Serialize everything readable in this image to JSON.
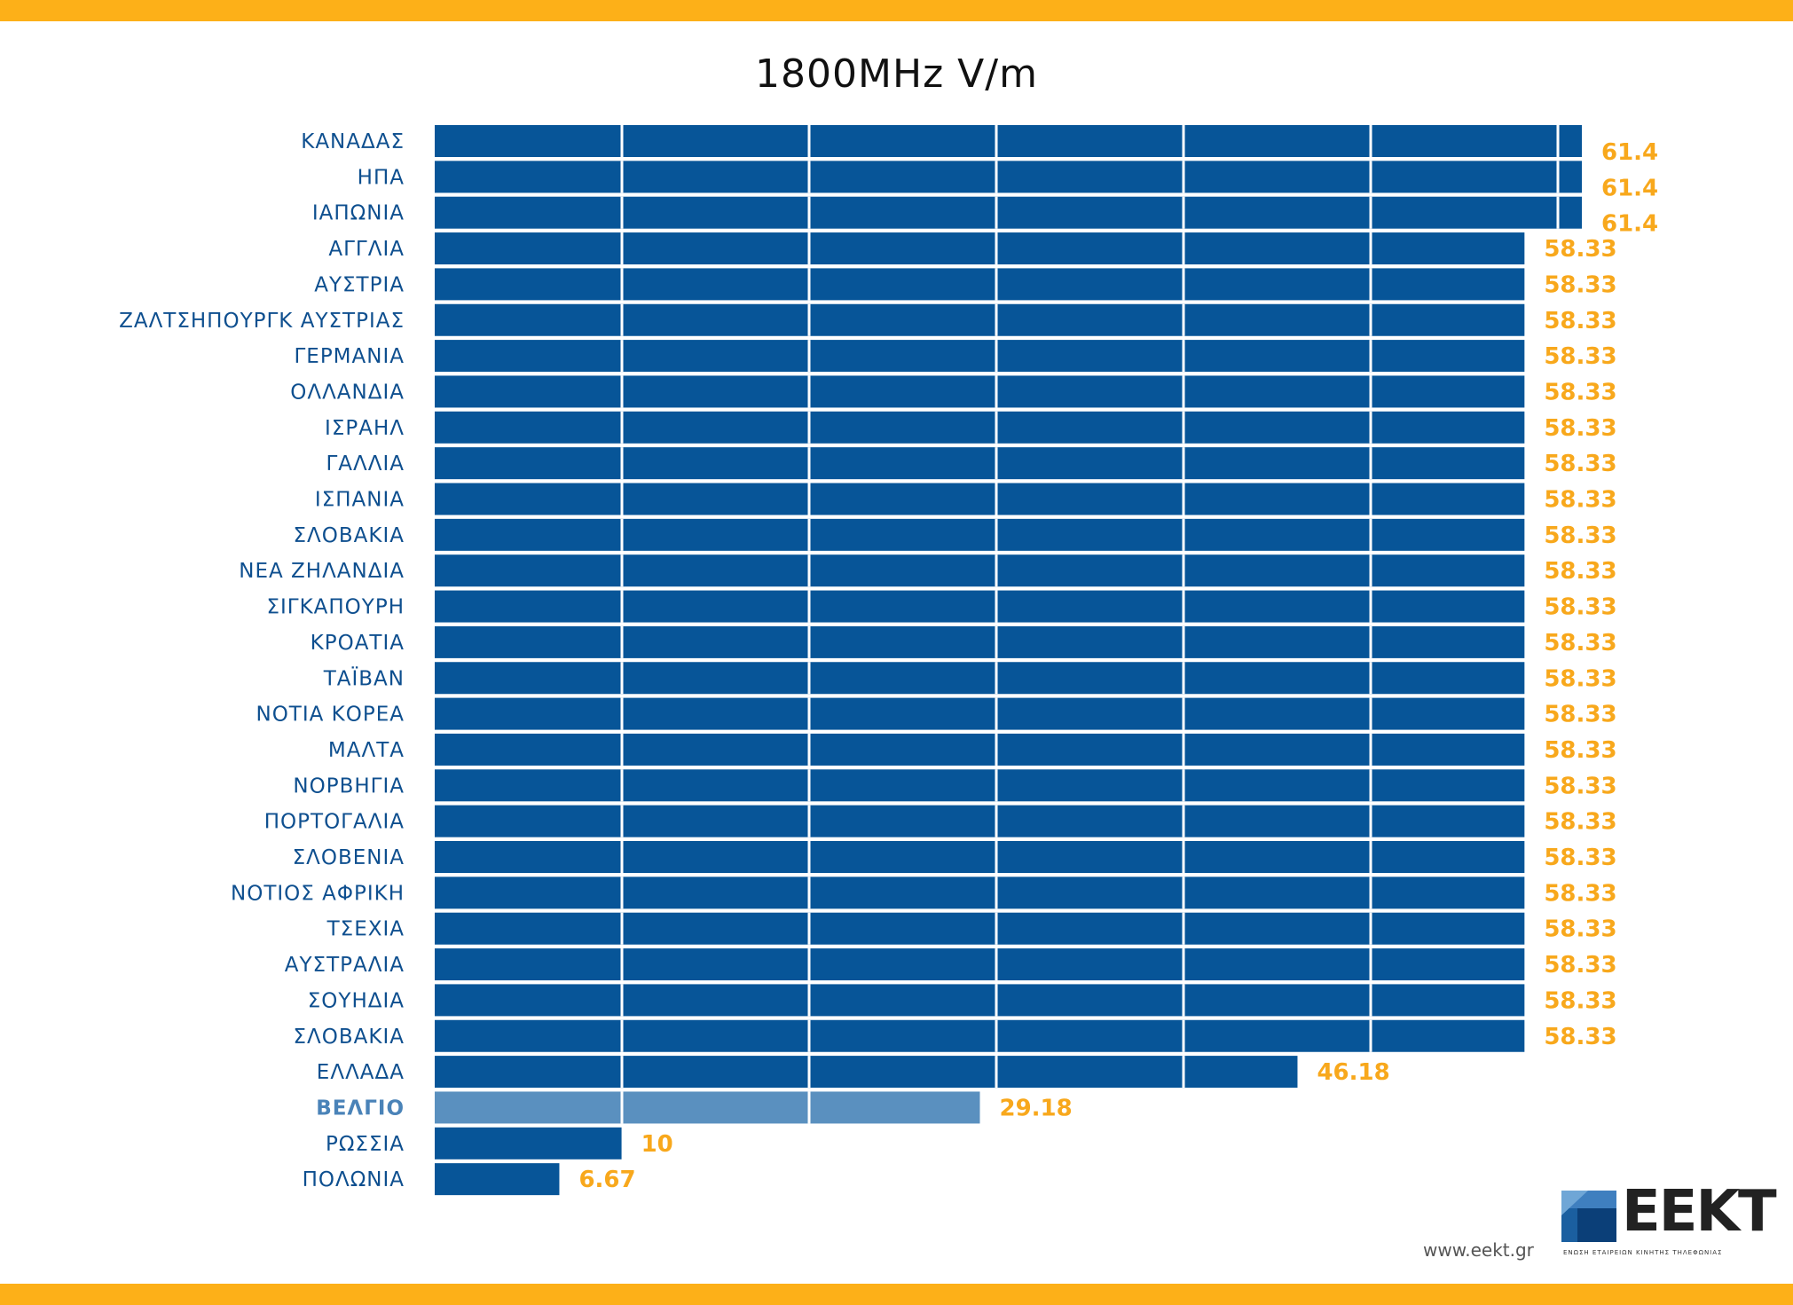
{
  "chart_data": {
    "type": "bar",
    "orientation": "horizontal",
    "title": "1800MHz V/m",
    "xlim": [
      0,
      63.3
    ],
    "grid": true,
    "colors": {
      "bar": "#075598",
      "highlight_bar": "#5a90bf",
      "label": "#0e4f8f",
      "highlight_label": "#4a83b8",
      "value_label": "#f8a81c"
    },
    "highlight_index": 27,
    "categories": [
      "ΚΑΝΑΔΑΣ",
      "ΗΠΑ",
      "ΙΑΠΩΝΙΑ",
      "ΑΓΓΛΙΑ",
      "ΑΥΣΤΡΙΑ",
      "ΖΑΛΤΣΗΠΟΥΡΓΚ ΑΥΣΤΡΙΑΣ",
      "ΓΕΡΜΑΝΙΑ",
      "ΟΛΛΑΝΔΙΑ",
      "ΙΣΡΑΗΛ",
      "ΓΑΛΛΙΑ",
      "ΙΣΠΑΝΙΑ",
      "ΣΛΟΒΑΚΙΑ",
      "ΝΕΑ ΖΗΛΑΝΔΙΑ",
      "ΣΙΓΚΑΠΟΥΡΗ",
      "ΚΡΟΑΤΙΑ",
      "ΤΑΪΒΑΝ",
      "ΝΟΤΙΑ ΚΟΡΕΑ",
      "ΜΑΛΤΑ",
      "ΝΟΡΒΗΓΙΑ",
      "ΠΟΡΤΟΓΑΛΙΑ",
      "ΣΛΟΒΕΝΙΑ",
      "ΝΟΤΙΟΣ ΑΦΡΙΚΗ",
      "ΤΣΕΧΙΑ",
      "ΑΥΣΤΡΑΛΙΑ",
      "ΣΟΥΗΔΙΑ",
      "ΣΛΟΒΑΚΙΑ",
      "ΕΛΛΑΔΑ",
      "ΒΕΛΓΙΟ",
      "ΡΩΣΣΙΑ",
      "ΠΟΛΩΝΙΑ"
    ],
    "values": [
      61.4,
      61.4,
      61.4,
      58.33,
      58.33,
      58.33,
      58.33,
      58.33,
      58.33,
      58.33,
      58.33,
      58.33,
      58.33,
      58.33,
      58.33,
      58.33,
      58.33,
      58.33,
      58.33,
      58.33,
      58.33,
      58.33,
      58.33,
      58.33,
      58.33,
      58.33,
      46.18,
      29.18,
      10,
      6.67
    ],
    "value_labels": [
      "61.4",
      "61.4",
      "61.4",
      "58.33",
      "58.33",
      "58.33",
      "58.33",
      "58.33",
      "58.33",
      "58.33",
      "58.33",
      "58.33",
      "58.33",
      "58.33",
      "58.33",
      "58.33",
      "58.33",
      "58.33",
      "58.33",
      "58.33",
      "58.33",
      "58.33",
      "58.33",
      "58.33",
      "58.33",
      "58.33",
      "46.18",
      "29.18",
      "10",
      "6.67"
    ]
  },
  "footer": {
    "website": "www.eekt.gr",
    "logo_text": "EEKT",
    "logo_subtitle": "ΕΝΩΣΗ ΕΤΑΙΡΕΙΩΝ ΚΙΝΗΤΗΣ ΤΗΛΕΦΩΝΙΑΣ"
  }
}
